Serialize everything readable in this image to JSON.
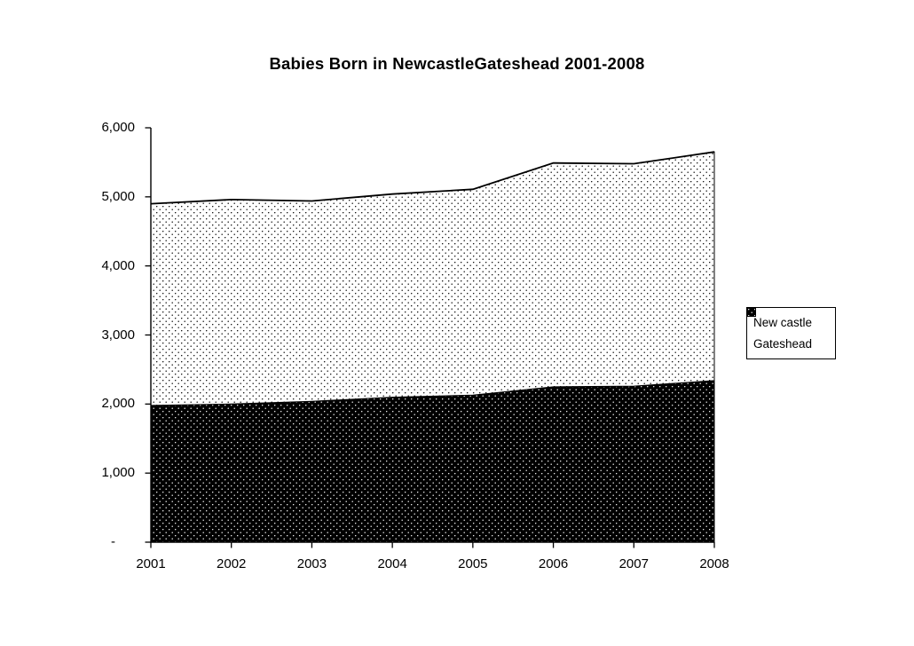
{
  "chart_data": {
    "type": "area",
    "stacked": true,
    "title": "Babies Born in NewcastleGateshead 2001-2008",
    "categories": [
      "2001",
      "2002",
      "2003",
      "2004",
      "2005",
      "2006",
      "2007",
      "2008"
    ],
    "series": [
      {
        "name": "Gateshead",
        "values": [
          1980,
          2000,
          2040,
          2100,
          2130,
          2250,
          2260,
          2340
        ],
        "fill_pattern": "white-dots-on-black"
      },
      {
        "name": "New castle",
        "values": [
          2920,
          2960,
          2900,
          2940,
          2980,
          3240,
          3220,
          3310
        ],
        "fill_pattern": "black-dots-on-white"
      }
    ],
    "stack_totals": [
      4900,
      4960,
      4940,
      5040,
      5110,
      5490,
      5480,
      5650
    ],
    "xlabel": "",
    "ylabel": "",
    "ylim": [
      0,
      6000
    ],
    "y_axis": {
      "ticks": [
        {
          "value": 6000,
          "label": "6,000"
        },
        {
          "value": 5000,
          "label": "5,000"
        },
        {
          "value": 4000,
          "label": "4,000"
        },
        {
          "value": 3000,
          "label": "3,000"
        },
        {
          "value": 2000,
          "label": "2,000"
        },
        {
          "value": 1000,
          "label": "1,000"
        },
        {
          "value": 0,
          "label": "-"
        }
      ]
    },
    "gridlines": false,
    "legend_position": "right",
    "background_color": "#FFFFFF",
    "ink_color": "#000000"
  },
  "legend": {
    "items": [
      {
        "label": "New castle",
        "swatch": "black-dots-on-white"
      },
      {
        "label": "Gateshead",
        "swatch": "white-dots-on-black"
      }
    ]
  }
}
